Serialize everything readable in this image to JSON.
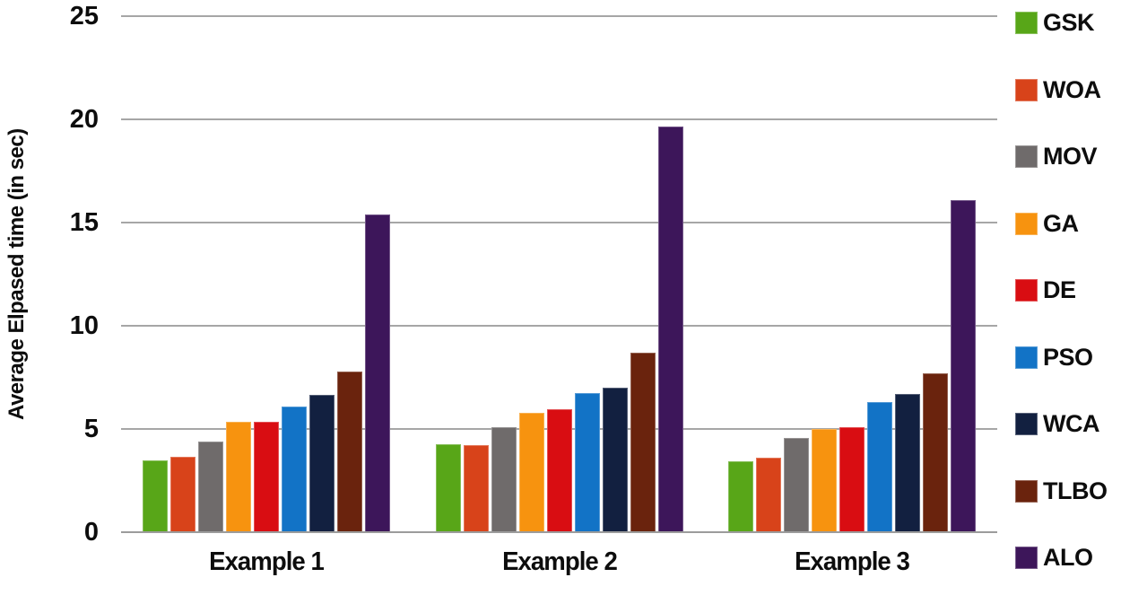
{
  "chart_data": {
    "type": "bar",
    "title": "",
    "xlabel": "",
    "ylabel": "Average Elpased time (in sec)",
    "ylim": [
      0,
      25
    ],
    "yticks": [
      0,
      5,
      10,
      15,
      20,
      25
    ],
    "grid": true,
    "legend_position": "right",
    "background_color": "#ffffff",
    "gridline_color": "#a6a6a6",
    "text_color": "#0d0d0d",
    "categories": [
      "Example 1",
      "Example 2",
      "Example 3"
    ],
    "series": [
      {
        "name": "GSK",
        "color": "#58A618",
        "values": [
          3.5,
          4.25,
          3.45
        ]
      },
      {
        "name": "WOA",
        "color": "#D8431A",
        "values": [
          3.65,
          4.2,
          3.6
        ]
      },
      {
        "name": "MOV",
        "color": "#6F6B6B",
        "values": [
          4.4,
          5.1,
          4.55
        ]
      },
      {
        "name": "GA",
        "color": "#F7930F",
        "values": [
          5.35,
          5.8,
          5.0
        ]
      },
      {
        "name": "DE",
        "color": "#D90D12",
        "values": [
          5.35,
          5.95,
          5.1
        ]
      },
      {
        "name": "PSO",
        "color": "#1273C6",
        "values": [
          6.1,
          6.75,
          6.3
        ]
      },
      {
        "name": "WCA",
        "color": "#122040",
        "values": [
          6.65,
          7.0,
          6.7
        ]
      },
      {
        "name": "TLBO",
        "color": "#6A230D",
        "values": [
          7.8,
          8.7,
          7.7
        ]
      },
      {
        "name": "ALO",
        "color": "#3D165A",
        "values": [
          15.4,
          19.65,
          16.1
        ]
      }
    ]
  }
}
